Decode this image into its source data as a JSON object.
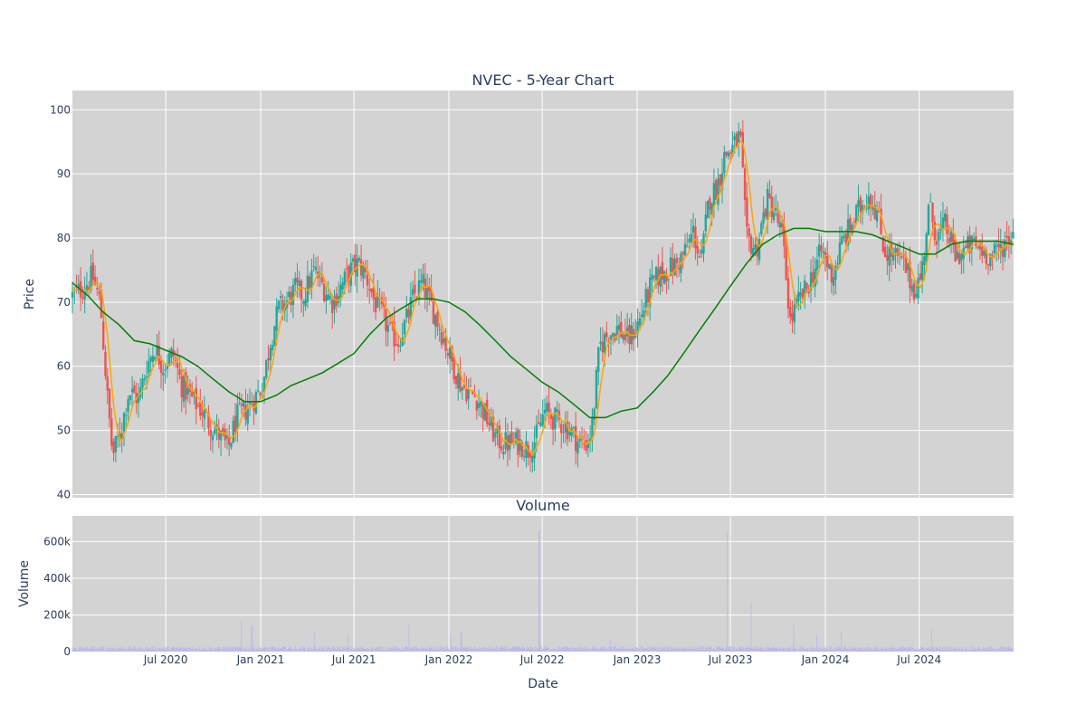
{
  "chart_data": [
    {
      "type": "candlestick",
      "title": "NVEC - 5-Year Chart",
      "xlabel": "",
      "ylabel": "Price",
      "ylim": [
        39.5,
        103
      ],
      "yticks": [
        40,
        50,
        60,
        70,
        80,
        90,
        100
      ],
      "grid": true,
      "colors": {
        "up": "#26a69a",
        "down": "#ef5350",
        "ma_short": "#ffa500",
        "ma_long": "#008000",
        "plot_bg": "#d3d3d3"
      },
      "price_path": [
        {
          "x": "2020-01-02",
          "y": 71
        },
        {
          "x": "2020-01-20",
          "y": 72
        },
        {
          "x": "2020-02-10",
          "y": 74
        },
        {
          "x": "2020-02-25",
          "y": 70
        },
        {
          "x": "2020-03-10",
          "y": 55
        },
        {
          "x": "2020-03-20",
          "y": 46
        },
        {
          "x": "2020-04-05",
          "y": 50
        },
        {
          "x": "2020-04-20",
          "y": 56
        },
        {
          "x": "2020-05-10",
          "y": 55
        },
        {
          "x": "2020-05-25",
          "y": 60
        },
        {
          "x": "2020-06-10",
          "y": 63
        },
        {
          "x": "2020-06-25",
          "y": 60
        },
        {
          "x": "2020-07-15",
          "y": 62
        },
        {
          "x": "2020-08-01",
          "y": 57
        },
        {
          "x": "2020-08-20",
          "y": 55
        },
        {
          "x": "2020-09-10",
          "y": 53
        },
        {
          "x": "2020-09-25",
          "y": 51
        },
        {
          "x": "2020-10-15",
          "y": 49
        },
        {
          "x": "2020-10-30",
          "y": 47
        },
        {
          "x": "2020-11-15",
          "y": 52
        },
        {
          "x": "2020-12-01",
          "y": 53
        },
        {
          "x": "2020-12-20",
          "y": 55
        },
        {
          "x": "2021-01-05",
          "y": 57
        },
        {
          "x": "2021-01-20",
          "y": 64
        },
        {
          "x": "2021-02-05",
          "y": 69
        },
        {
          "x": "2021-02-20",
          "y": 70
        },
        {
          "x": "2021-03-10",
          "y": 72
        },
        {
          "x": "2021-03-25",
          "y": 71
        },
        {
          "x": "2021-04-15",
          "y": 75
        },
        {
          "x": "2021-05-05",
          "y": 72
        },
        {
          "x": "2021-05-20",
          "y": 70
        },
        {
          "x": "2021-06-10",
          "y": 73
        },
        {
          "x": "2021-06-25",
          "y": 75
        },
        {
          "x": "2021-07-10",
          "y": 76
        },
        {
          "x": "2021-07-25",
          "y": 74
        },
        {
          "x": "2021-08-10",
          "y": 70
        },
        {
          "x": "2021-08-25",
          "y": 68
        },
        {
          "x": "2021-09-10",
          "y": 65
        },
        {
          "x": "2021-09-25",
          "y": 64
        },
        {
          "x": "2021-10-10",
          "y": 67
        },
        {
          "x": "2021-10-25",
          "y": 71
        },
        {
          "x": "2021-11-10",
          "y": 73
        },
        {
          "x": "2021-11-25",
          "y": 70
        },
        {
          "x": "2021-12-15",
          "y": 66
        },
        {
          "x": "2022-01-05",
          "y": 61
        },
        {
          "x": "2022-01-25",
          "y": 57
        },
        {
          "x": "2022-02-10",
          "y": 56
        },
        {
          "x": "2022-02-25",
          "y": 55
        },
        {
          "x": "2022-03-15",
          "y": 52
        },
        {
          "x": "2022-04-01",
          "y": 49
        },
        {
          "x": "2022-04-15",
          "y": 48
        },
        {
          "x": "2022-05-05",
          "y": 48
        },
        {
          "x": "2022-05-20",
          "y": 48
        },
        {
          "x": "2022-06-05",
          "y": 47
        },
        {
          "x": "2022-06-20",
          "y": 49
        },
        {
          "x": "2022-07-05",
          "y": 53
        },
        {
          "x": "2022-07-20",
          "y": 52
        },
        {
          "x": "2022-08-10",
          "y": 51
        },
        {
          "x": "2022-08-25",
          "y": 50
        },
        {
          "x": "2022-09-10",
          "y": 48
        },
        {
          "x": "2022-09-25",
          "y": 48
        },
        {
          "x": "2022-10-05",
          "y": 50
        },
        {
          "x": "2022-10-20",
          "y": 63
        },
        {
          "x": "2022-11-05",
          "y": 65
        },
        {
          "x": "2022-11-25",
          "y": 66
        },
        {
          "x": "2022-12-15",
          "y": 64
        },
        {
          "x": "2023-01-05",
          "y": 67
        },
        {
          "x": "2023-01-25",
          "y": 72
        },
        {
          "x": "2023-02-10",
          "y": 74
        },
        {
          "x": "2023-03-01",
          "y": 75
        },
        {
          "x": "2023-03-20",
          "y": 76
        },
        {
          "x": "2023-04-05",
          "y": 78
        },
        {
          "x": "2023-04-20",
          "y": 81
        },
        {
          "x": "2023-05-05",
          "y": 76
        },
        {
          "x": "2023-05-20",
          "y": 86
        },
        {
          "x": "2023-06-05",
          "y": 88
        },
        {
          "x": "2023-06-20",
          "y": 93
        },
        {
          "x": "2023-07-05",
          "y": 94
        },
        {
          "x": "2023-07-20",
          "y": 96
        },
        {
          "x": "2023-08-01",
          "y": 80
        },
        {
          "x": "2023-08-20",
          "y": 78
        },
        {
          "x": "2023-09-10",
          "y": 86
        },
        {
          "x": "2023-09-25",
          "y": 84
        },
        {
          "x": "2023-10-10",
          "y": 80
        },
        {
          "x": "2023-10-25",
          "y": 67
        },
        {
          "x": "2023-11-10",
          "y": 70
        },
        {
          "x": "2023-11-25",
          "y": 72
        },
        {
          "x": "2023-12-10",
          "y": 75
        },
        {
          "x": "2023-12-25",
          "y": 78
        },
        {
          "x": "2024-01-15",
          "y": 74
        },
        {
          "x": "2024-02-01",
          "y": 79
        },
        {
          "x": "2024-02-20",
          "y": 82
        },
        {
          "x": "2024-03-10",
          "y": 85
        },
        {
          "x": "2024-03-25",
          "y": 87
        },
        {
          "x": "2024-04-10",
          "y": 84
        },
        {
          "x": "2024-04-25",
          "y": 78
        },
        {
          "x": "2024-05-15",
          "y": 77
        },
        {
          "x": "2024-06-01",
          "y": 76
        },
        {
          "x": "2024-06-20",
          "y": 72
        },
        {
          "x": "2024-07-05",
          "y": 74
        },
        {
          "x": "2024-07-20",
          "y": 85
        },
        {
          "x": "2024-08-05",
          "y": 80
        },
        {
          "x": "2024-08-20",
          "y": 82
        },
        {
          "x": "2024-09-10",
          "y": 77
        },
        {
          "x": "2024-09-25",
          "y": 78
        },
        {
          "x": "2024-10-15",
          "y": 79
        },
        {
          "x": "2024-11-01",
          "y": 78
        },
        {
          "x": "2024-11-20",
          "y": 77
        },
        {
          "x": "2024-12-10",
          "y": 79
        },
        {
          "x": "2024-12-31",
          "y": 81
        }
      ],
      "ma_long": [
        {
          "x": "2020-01-02",
          "y": 73
        },
        {
          "x": "2020-02-01",
          "y": 71
        },
        {
          "x": "2020-03-01",
          "y": 68.5
        },
        {
          "x": "2020-04-01",
          "y": 66.5
        },
        {
          "x": "2020-05-01",
          "y": 64
        },
        {
          "x": "2020-06-01",
          "y": 63.5
        },
        {
          "x": "2020-07-01",
          "y": 62.5
        },
        {
          "x": "2020-08-01",
          "y": 61.5
        },
        {
          "x": "2020-09-01",
          "y": 60
        },
        {
          "x": "2020-10-01",
          "y": 58
        },
        {
          "x": "2020-11-01",
          "y": 56
        },
        {
          "x": "2020-12-01",
          "y": 54.5
        },
        {
          "x": "2021-01-01",
          "y": 54.5
        },
        {
          "x": "2021-02-01",
          "y": 55.5
        },
        {
          "x": "2021-03-01",
          "y": 57
        },
        {
          "x": "2021-04-01",
          "y": 58
        },
        {
          "x": "2021-05-01",
          "y": 59
        },
        {
          "x": "2021-06-01",
          "y": 60.5
        },
        {
          "x": "2021-07-01",
          "y": 62
        },
        {
          "x": "2021-08-01",
          "y": 65
        },
        {
          "x": "2021-09-01",
          "y": 67.5
        },
        {
          "x": "2021-10-01",
          "y": 69
        },
        {
          "x": "2021-11-01",
          "y": 70.5
        },
        {
          "x": "2021-12-01",
          "y": 70.5
        },
        {
          "x": "2022-01-01",
          "y": 70
        },
        {
          "x": "2022-02-01",
          "y": 68.5
        },
        {
          "x": "2022-03-01",
          "y": 66.5
        },
        {
          "x": "2022-04-01",
          "y": 64
        },
        {
          "x": "2022-05-01",
          "y": 61.5
        },
        {
          "x": "2022-06-01",
          "y": 59.5
        },
        {
          "x": "2022-07-01",
          "y": 57.5
        },
        {
          "x": "2022-08-01",
          "y": 56
        },
        {
          "x": "2022-09-01",
          "y": 54
        },
        {
          "x": "2022-10-01",
          "y": 52
        },
        {
          "x": "2022-11-01",
          "y": 52
        },
        {
          "x": "2022-12-01",
          "y": 53
        },
        {
          "x": "2023-01-01",
          "y": 53.5
        },
        {
          "x": "2023-02-01",
          "y": 56
        },
        {
          "x": "2023-03-01",
          "y": 58.5
        },
        {
          "x": "2023-04-01",
          "y": 62
        },
        {
          "x": "2023-05-01",
          "y": 65.5
        },
        {
          "x": "2023-06-01",
          "y": 69
        },
        {
          "x": "2023-07-01",
          "y": 72.5
        },
        {
          "x": "2023-08-01",
          "y": 76
        },
        {
          "x": "2023-09-01",
          "y": 79
        },
        {
          "x": "2023-10-01",
          "y": 80.5
        },
        {
          "x": "2023-11-01",
          "y": 81.5
        },
        {
          "x": "2023-12-01",
          "y": 81.5
        },
        {
          "x": "2024-01-01",
          "y": 81
        },
        {
          "x": "2024-02-01",
          "y": 81
        },
        {
          "x": "2024-03-01",
          "y": 81
        },
        {
          "x": "2024-04-01",
          "y": 80.5
        },
        {
          "x": "2024-05-01",
          "y": 79.5
        },
        {
          "x": "2024-06-01",
          "y": 78.5
        },
        {
          "x": "2024-07-01",
          "y": 77.5
        },
        {
          "x": "2024-08-01",
          "y": 77.5
        },
        {
          "x": "2024-09-01",
          "y": 79
        },
        {
          "x": "2024-10-01",
          "y": 79.5
        },
        {
          "x": "2024-11-01",
          "y": 79.5
        },
        {
          "x": "2024-12-01",
          "y": 79.5
        },
        {
          "x": "2024-12-31",
          "y": 79
        }
      ]
    },
    {
      "type": "bar",
      "title": "Volume",
      "xlabel": "Date",
      "ylabel": "Volume",
      "ylim": [
        0,
        740000
      ],
      "yticks": [
        0,
        200000,
        400000,
        600000
      ],
      "ytick_labels": [
        "0",
        "200k",
        "400k",
        "600k"
      ],
      "xlim": [
        "2020-01-02",
        "2024-12-31"
      ],
      "xticks": [
        "2020-07-01",
        "2021-01-01",
        "2021-07-01",
        "2022-01-01",
        "2022-07-01",
        "2023-01-01",
        "2023-07-01",
        "2024-01-01",
        "2024-07-01"
      ],
      "xtick_labels": [
        "Jul 2020",
        "Jan 2021",
        "Jul 2021",
        "Jan 2022",
        "Jul 2022",
        "Jan 2023",
        "Jul 2023",
        "Jan 2024",
        "Jul 2024"
      ],
      "bar_color": "#b7b7ef",
      "base_volume": 25000,
      "spikes": [
        {
          "x": "2020-11-25",
          "y": 170000
        },
        {
          "x": "2020-12-15",
          "y": 140000
        },
        {
          "x": "2021-04-15",
          "y": 100000
        },
        {
          "x": "2021-06-20",
          "y": 90000
        },
        {
          "x": "2021-10-15",
          "y": 150000
        },
        {
          "x": "2022-01-05",
          "y": 95000
        },
        {
          "x": "2022-01-25",
          "y": 110000
        },
        {
          "x": "2022-06-25",
          "y": 660000
        },
        {
          "x": "2022-11-10",
          "y": 70000
        },
        {
          "x": "2023-06-25",
          "y": 650000
        },
        {
          "x": "2023-08-10",
          "y": 270000
        },
        {
          "x": "2023-11-01",
          "y": 150000
        },
        {
          "x": "2023-12-15",
          "y": 90000
        },
        {
          "x": "2024-02-01",
          "y": 110000
        },
        {
          "x": "2024-07-25",
          "y": 120000
        }
      ]
    }
  ]
}
